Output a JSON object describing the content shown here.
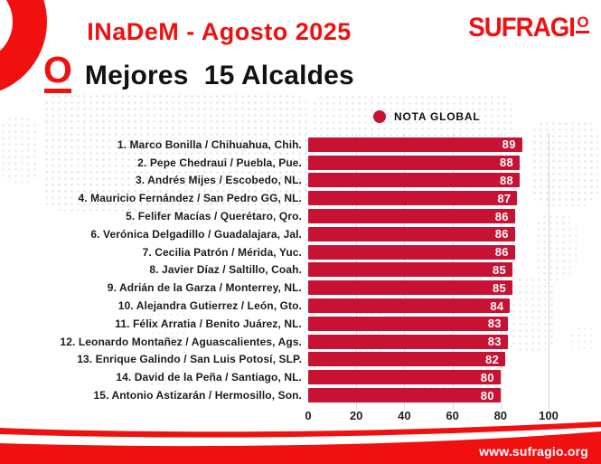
{
  "header": {
    "title": "INaDeM - Agosto 2025",
    "logo_main": "SUFRAGI",
    "logo_o": "O"
  },
  "page_title": {
    "o": "O",
    "text": "Mejores  15 Alcaldes"
  },
  "legend": {
    "label": "NOTA GLOBAL"
  },
  "footer": {
    "website": "www.sufragio.org"
  },
  "colors": {
    "brand_red": "#F01010",
    "bar_red": "#C81234",
    "grid_gray": "#dddddd"
  },
  "chart_data": {
    "type": "bar",
    "orientation": "horizontal",
    "title": "Mejores 15 Alcaldes",
    "subtitle": "INaDeM - Agosto 2025",
    "legend_entries": [
      "NOTA GLOBAL"
    ],
    "legend_position": "top-right",
    "grid": true,
    "xlim": [
      0,
      100
    ],
    "xticks": [
      0,
      20,
      40,
      60,
      80,
      100
    ],
    "categories": [
      "1. Marco Bonilla / Chihuahua, Chih.",
      "2. Pepe Chedraui / Puebla, Pue.",
      "3. Andrés Mijes / Escobedo, NL.",
      "4. Mauricio Fernández / San Pedro GG, NL.",
      "5. Felifer Macías / Querétaro, Qro.",
      "6. Verónica Delgadillo / Guadalajara, Jal.",
      "7. Cecilia Patrón / Mérida, Yuc.",
      "8. Javier Díaz / Saltillo, Coah.",
      "9. Adrián de la Garza / Monterrey, NL.",
      "10. Alejandra Gutierrez / León, Gto.",
      "11. Félix Arratia / Benito Juárez, NL.",
      "12. Leonardo Montañez / Aguascalientes, Ags.",
      "13. Enrique Galindo / San Luis Potosí, SLP.",
      "14. David de la Peña / Santiago, NL.",
      "15. Antonio Astizarán / Hermosillo, Son."
    ],
    "values": [
      89,
      88,
      88,
      87,
      86,
      86,
      86,
      85,
      85,
      84,
      83,
      83,
      82,
      80,
      80
    ]
  }
}
